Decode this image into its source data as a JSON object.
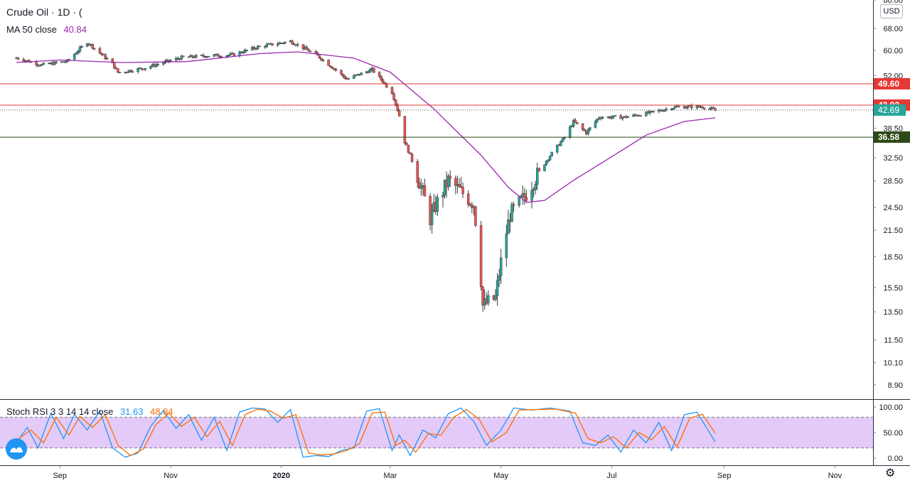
{
  "header": {
    "symbol_title": "Crude Oil · 1D · (",
    "ma_label": "MA 50 close",
    "ma_value": "40.84",
    "rsi_label": "Stoch RSI 3 3 14 14 close",
    "rsi_k": "31.63",
    "rsi_d": "48.84",
    "currency": "USD"
  },
  "colors": {
    "up": "#26a69a",
    "down": "#ef5350",
    "ma": "#9c27b0",
    "stoch_k": "#2196f3",
    "stoch_d": "#ff6d00",
    "resistance": "#e53935",
    "support": "#2e4a16",
    "rsi_band": "#e1c4f7"
  },
  "icons": {
    "logo": "tradingview-logo-icon",
    "settings": "gear-icon"
  },
  "chart_data": [
    {
      "type": "candlestick",
      "title": "Crude Oil · 1D",
      "yaxis": {
        "scale": "log",
        "range": [
          8.2,
          80
        ],
        "ticks": [
          "80.00",
          "68.00",
          "60.00",
          "52.00",
          "38.50",
          "32.50",
          "28.50",
          "24.50",
          "21.50",
          "18.50",
          "15.50",
          "13.50",
          "11.50",
          "10.10",
          "8.90"
        ]
      },
      "xaxis": {
        "ticks": [
          "Sep",
          "Nov",
          "2020",
          "Mar",
          "May",
          "Jul",
          "Sep",
          "Nov"
        ]
      },
      "price_path": [
        [
          "2019-08-08",
          57.5
        ],
        [
          "2019-08-22",
          55.2
        ],
        [
          "2019-09-05",
          56.4
        ],
        [
          "2019-09-16",
          62.9
        ],
        [
          "2019-09-30",
          55.5
        ],
        [
          "2019-10-03",
          52.9
        ],
        [
          "2019-10-17",
          54.2
        ],
        [
          "2019-11-07",
          57.6
        ],
        [
          "2019-11-21",
          58.2
        ],
        [
          "2019-12-05",
          58.5
        ],
        [
          "2019-12-19",
          61.2
        ],
        [
          "2020-01-06",
          63.2
        ],
        [
          "2020-01-20",
          58.6
        ],
        [
          "2020-02-06",
          50.9
        ],
        [
          "2020-02-20",
          53.8
        ],
        [
          "2020-03-02",
          47.2
        ],
        [
          "2020-03-06",
          41.3
        ],
        [
          "2020-03-09",
          35.6
        ],
        [
          "2020-03-18",
          27.5
        ],
        [
          "2020-03-23",
          23.0
        ],
        [
          "2020-04-02",
          28.6
        ],
        [
          "2020-04-16",
          25.0
        ],
        [
          "2020-04-21",
          14.0
        ],
        [
          "2020-04-28",
          14.6
        ],
        [
          "2020-05-06",
          23.5
        ],
        [
          "2020-05-14",
          26.0
        ],
        [
          "2020-05-26",
          32.0
        ],
        [
          "2020-06-05",
          36.5
        ],
        [
          "2020-06-10",
          40.0
        ],
        [
          "2020-06-17",
          37.5
        ],
        [
          "2020-06-24",
          41.0
        ],
        [
          "2020-07-08",
          41.0
        ],
        [
          "2020-07-22",
          42.0
        ],
        [
          "2020-08-05",
          43.5
        ],
        [
          "2020-08-20",
          43.5
        ],
        [
          "2020-08-27",
          42.69
        ]
      ],
      "ma50": {
        "name": "MA 50",
        "points": [
          [
            "2019-08-08",
            56.0
          ],
          [
            "2019-09-01",
            56.8
          ],
          [
            "2019-10-05",
            56.0
          ],
          [
            "2019-11-10",
            56.3
          ],
          [
            "2019-12-20",
            58.9
          ],
          [
            "2020-01-10",
            59.5
          ],
          [
            "2020-02-10",
            57.4
          ],
          [
            "2020-03-01",
            53.0
          ],
          [
            "2020-03-25",
            43.0
          ],
          [
            "2020-04-20",
            33.0
          ],
          [
            "2020-05-05",
            27.5
          ],
          [
            "2020-05-15",
            25.2
          ],
          [
            "2020-05-25",
            25.5
          ],
          [
            "2020-06-10",
            28.6
          ],
          [
            "2020-06-30",
            32.5
          ],
          [
            "2020-07-20",
            37.0
          ],
          [
            "2020-08-10",
            40.0
          ],
          [
            "2020-08-27",
            40.84
          ]
        ]
      },
      "levels": [
        {
          "value": 49.6,
          "label": "49.60",
          "kind": "resistance"
        },
        {
          "value": 43.92,
          "label": "43.92",
          "kind": "resistance"
        },
        {
          "value": 36.58,
          "label": "36.58",
          "kind": "support"
        }
      ],
      "last_price": {
        "value": 42.69,
        "label": "42.69"
      }
    },
    {
      "type": "line",
      "title": "Stoch RSI 3 3 14 14 close",
      "yaxis": {
        "range": [
          0,
          100
        ],
        "ticks": [
          "100.00",
          "50.00",
          "0.00"
        ],
        "bands": [
          20,
          80
        ]
      },
      "series": [
        {
          "name": "K",
          "values": [
            [
              "2019-08-08",
              30
            ],
            [
              "2019-08-14",
              60
            ],
            [
              "2019-08-20",
              20
            ],
            [
              "2019-08-27",
              88
            ],
            [
              "2019-09-03",
              38
            ],
            [
              "2019-09-09",
              86
            ],
            [
              "2019-09-16",
              55
            ],
            [
              "2019-09-23",
              92
            ],
            [
              "2019-09-30",
              20
            ],
            [
              "2019-10-07",
              2
            ],
            [
              "2019-10-14",
              10
            ],
            [
              "2019-10-21",
              62
            ],
            [
              "2019-10-28",
              93
            ],
            [
              "2019-11-04",
              58
            ],
            [
              "2019-11-11",
              85
            ],
            [
              "2019-11-18",
              35
            ],
            [
              "2019-11-25",
              80
            ],
            [
              "2019-12-02",
              15
            ],
            [
              "2019-12-09",
              90
            ],
            [
              "2019-12-16",
              98
            ],
            [
              "2019-12-23",
              96
            ],
            [
              "2019-12-30",
              70
            ],
            [
              "2020-01-06",
              95
            ],
            [
              "2020-01-13",
              2
            ],
            [
              "2020-01-20",
              5
            ],
            [
              "2020-01-27",
              3
            ],
            [
              "2020-02-03",
              15
            ],
            [
              "2020-02-10",
              20
            ],
            [
              "2020-02-17",
              92
            ],
            [
              "2020-02-24",
              97
            ],
            [
              "2020-03-02",
              15
            ],
            [
              "2020-03-06",
              45
            ],
            [
              "2020-03-12",
              5
            ],
            [
              "2020-03-19",
              55
            ],
            [
              "2020-03-26",
              40
            ],
            [
              "2020-04-02",
              87
            ],
            [
              "2020-04-09",
              98
            ],
            [
              "2020-04-16",
              72
            ],
            [
              "2020-04-23",
              25
            ],
            [
              "2020-05-01",
              55
            ],
            [
              "2020-05-08",
              98
            ],
            [
              "2020-05-18",
              94
            ],
            [
              "2020-05-28",
              98
            ],
            [
              "2020-06-08",
              92
            ],
            [
              "2020-06-15",
              30
            ],
            [
              "2020-06-22",
              25
            ],
            [
              "2020-06-29",
              45
            ],
            [
              "2020-07-06",
              12
            ],
            [
              "2020-07-13",
              55
            ],
            [
              "2020-07-20",
              30
            ],
            [
              "2020-07-27",
              70
            ],
            [
              "2020-08-03",
              15
            ],
            [
              "2020-08-10",
              85
            ],
            [
              "2020-08-17",
              90
            ],
            [
              "2020-08-27",
              31.63
            ]
          ]
        },
        {
          "name": "D",
          "values": [
            [
              "2019-08-08",
              35
            ],
            [
              "2019-08-16",
              55
            ],
            [
              "2019-08-23",
              30
            ],
            [
              "2019-08-30",
              80
            ],
            [
              "2019-09-06",
              45
            ],
            [
              "2019-09-12",
              82
            ],
            [
              "2019-09-19",
              60
            ],
            [
              "2019-09-26",
              85
            ],
            [
              "2019-10-03",
              25
            ],
            [
              "2019-10-10",
              5
            ],
            [
              "2019-10-17",
              18
            ],
            [
              "2019-10-24",
              66
            ],
            [
              "2019-10-31",
              88
            ],
            [
              "2019-11-07",
              62
            ],
            [
              "2019-11-14",
              80
            ],
            [
              "2019-11-21",
              42
            ],
            [
              "2019-11-28",
              72
            ],
            [
              "2019-12-05",
              25
            ],
            [
              "2019-12-12",
              85
            ],
            [
              "2019-12-19",
              96
            ],
            [
              "2019-12-26",
              92
            ],
            [
              "2020-01-02",
              78
            ],
            [
              "2020-01-09",
              85
            ],
            [
              "2020-01-16",
              10
            ],
            [
              "2020-01-23",
              6
            ],
            [
              "2020-01-30",
              8
            ],
            [
              "2020-02-06",
              15
            ],
            [
              "2020-02-13",
              28
            ],
            [
              "2020-02-20",
              88
            ],
            [
              "2020-02-27",
              90
            ],
            [
              "2020-03-04",
              25
            ],
            [
              "2020-03-09",
              35
            ],
            [
              "2020-03-15",
              12
            ],
            [
              "2020-03-22",
              48
            ],
            [
              "2020-03-29",
              45
            ],
            [
              "2020-04-05",
              80
            ],
            [
              "2020-04-12",
              95
            ],
            [
              "2020-04-19",
              76
            ],
            [
              "2020-04-26",
              32
            ],
            [
              "2020-05-04",
              50
            ],
            [
              "2020-05-11",
              94
            ],
            [
              "2020-05-21",
              95
            ],
            [
              "2020-05-31",
              96
            ],
            [
              "2020-06-11",
              88
            ],
            [
              "2020-06-18",
              38
            ],
            [
              "2020-06-25",
              30
            ],
            [
              "2020-07-02",
              42
            ],
            [
              "2020-07-09",
              20
            ],
            [
              "2020-07-16",
              50
            ],
            [
              "2020-07-23",
              36
            ],
            [
              "2020-07-30",
              62
            ],
            [
              "2020-08-06",
              22
            ],
            [
              "2020-08-13",
              78
            ],
            [
              "2020-08-20",
              86
            ],
            [
              "2020-08-27",
              48.84
            ]
          ]
        }
      ]
    }
  ]
}
